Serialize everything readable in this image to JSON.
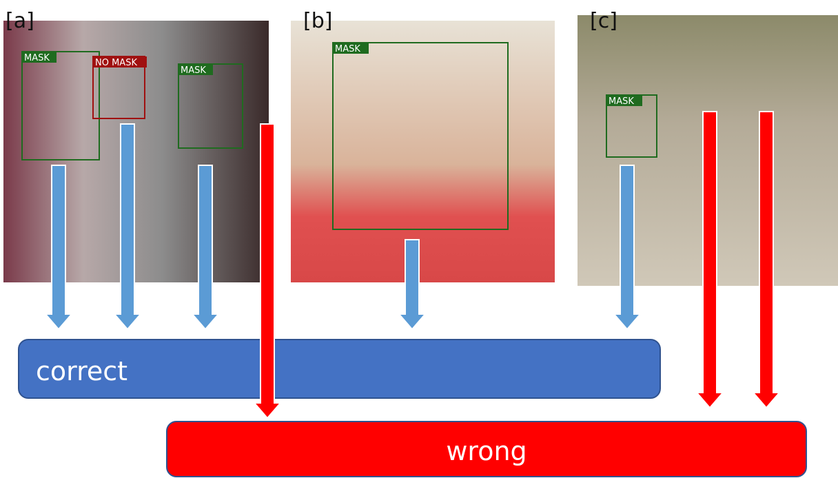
{
  "panels": [
    {
      "label": "[a]",
      "boxes": [
        "MASK",
        "NO MASK",
        "MASK"
      ]
    },
    {
      "label": "[b]",
      "boxes": [
        "MASK"
      ]
    },
    {
      "label": "[c]",
      "boxes": [
        "MASK"
      ]
    }
  ],
  "outcomes": {
    "correct": "correct",
    "wrong": "wrong"
  }
}
